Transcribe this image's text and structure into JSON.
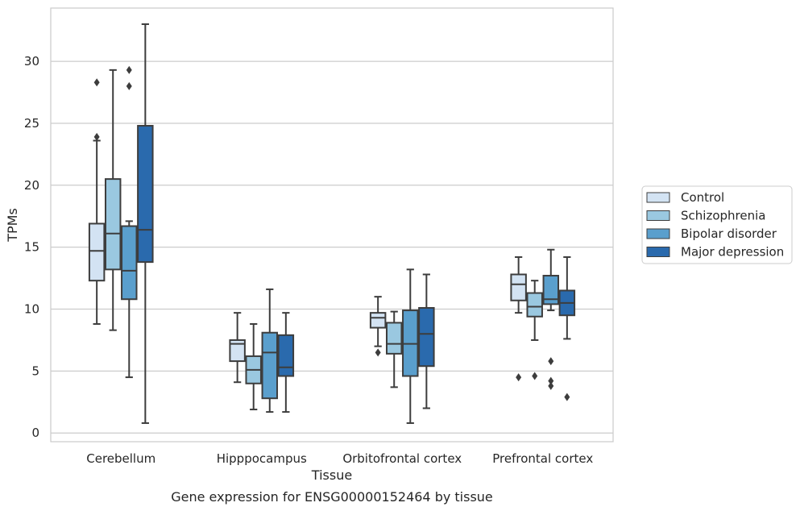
{
  "chart_data": {
    "type": "box",
    "title": "",
    "caption": "Gene expression for ENSG00000152464 by tissue",
    "xlabel": "Tissue",
    "ylabel": "TPMs",
    "ylim": [
      -0.7,
      34.3
    ],
    "yticks": [
      0,
      5,
      10,
      15,
      20,
      25,
      30
    ],
    "grid": "horizontal",
    "legend_position": "right",
    "categories": [
      "Cerebellum",
      "Hipppocampus",
      "Orbitofrontal cortex",
      "Prefrontal cortex"
    ],
    "series": [
      {
        "name": "Control",
        "color": "#d3e3f3",
        "boxes": [
          {
            "whislo": 8.8,
            "q1": 12.3,
            "med": 14.7,
            "q3": 16.9,
            "whishi": 23.6,
            "fliers": [
              28.3,
              23.9
            ]
          },
          {
            "whislo": 4.1,
            "q1": 5.8,
            "med": 7.2,
            "q3": 7.5,
            "whishi": 9.7,
            "fliers": []
          },
          {
            "whislo": 7.0,
            "q1": 8.5,
            "med": 9.3,
            "q3": 9.7,
            "whishi": 11.0,
            "fliers": [
              6.5
            ]
          },
          {
            "whislo": 9.7,
            "q1": 10.7,
            "med": 12.0,
            "q3": 12.8,
            "whishi": 14.2,
            "fliers": [
              4.5
            ]
          }
        ]
      },
      {
        "name": "Schizophrenia",
        "color": "#9ac8e0",
        "boxes": [
          {
            "whislo": 8.3,
            "q1": 13.2,
            "med": 16.1,
            "q3": 20.5,
            "whishi": 29.3,
            "fliers": []
          },
          {
            "whislo": 1.9,
            "q1": 4.0,
            "med": 5.1,
            "q3": 6.2,
            "whishi": 8.8,
            "fliers": []
          },
          {
            "whislo": 3.7,
            "q1": 6.4,
            "med": 7.2,
            "q3": 8.9,
            "whishi": 9.8,
            "fliers": []
          },
          {
            "whislo": 7.5,
            "q1": 9.4,
            "med": 10.2,
            "q3": 11.3,
            "whishi": 12.3,
            "fliers": [
              4.6
            ]
          }
        ]
      },
      {
        "name": "Bipolar disorder",
        "color": "#5a9fcd",
        "boxes": [
          {
            "whislo": 4.5,
            "q1": 10.8,
            "med": 13.1,
            "q3": 16.7,
            "whishi": 17.1,
            "fliers": [
              29.3,
              28.0
            ]
          },
          {
            "whislo": 1.7,
            "q1": 2.8,
            "med": 6.5,
            "q3": 8.1,
            "whishi": 11.6,
            "fliers": []
          },
          {
            "whislo": 0.8,
            "q1": 4.6,
            "med": 7.2,
            "q3": 9.9,
            "whishi": 13.2,
            "fliers": []
          },
          {
            "whislo": 9.9,
            "q1": 10.4,
            "med": 10.8,
            "q3": 12.7,
            "whishi": 14.8,
            "fliers": [
              5.8,
              4.2,
              3.8
            ]
          }
        ]
      },
      {
        "name": "Major depression",
        "color": "#2a6aad",
        "boxes": [
          {
            "whislo": 0.8,
            "q1": 13.8,
            "med": 16.4,
            "q3": 24.8,
            "whishi": 33.0,
            "fliers": []
          },
          {
            "whislo": 1.7,
            "q1": 4.6,
            "med": 5.3,
            "q3": 7.9,
            "whishi": 9.7,
            "fliers": []
          },
          {
            "whislo": 2.0,
            "q1": 5.4,
            "med": 8.0,
            "q3": 10.1,
            "whishi": 12.8,
            "fliers": []
          },
          {
            "whislo": 7.6,
            "q1": 9.5,
            "med": 10.5,
            "q3": 11.5,
            "whishi": 14.2,
            "fliers": [
              2.9
            ]
          }
        ]
      }
    ]
  }
}
